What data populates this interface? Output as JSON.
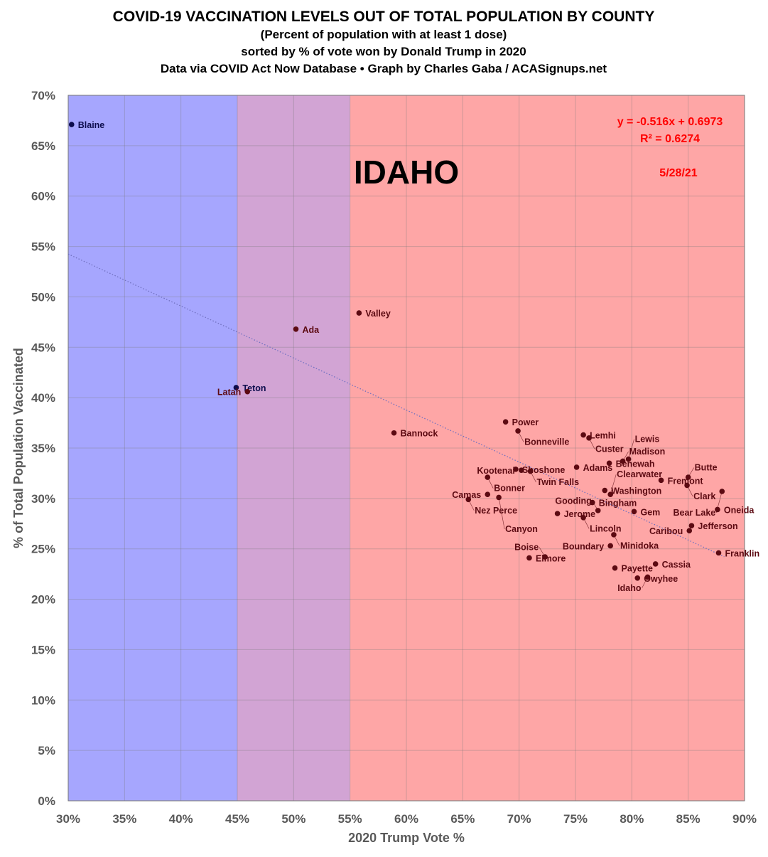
{
  "chart_data": {
    "type": "scatter",
    "title": "COVID-19 VACCINATION LEVELS OUT OF TOTAL POPULATION BY COUNTY",
    "subtitles": [
      "(Percent of population with at least 1 dose)",
      "sorted by % of vote won by Donald Trump in 2020",
      "Data via COVID Act Now Database • Graph by Charles Gaba / ACASignups.net"
    ],
    "xlabel": "2020 Trump Vote %",
    "ylabel": "% of Total Population Vaccinated",
    "xlim": [
      30,
      90
    ],
    "ylim": [
      0,
      70
    ],
    "xticks": [
      "30%",
      "35%",
      "40%",
      "45%",
      "50%",
      "55%",
      "60%",
      "65%",
      "70%",
      "75%",
      "80%",
      "85%",
      "90%"
    ],
    "yticks": [
      "0%",
      "5%",
      "10%",
      "15%",
      "20%",
      "25%",
      "30%",
      "35%",
      "40%",
      "45%",
      "50%",
      "55%",
      "60%",
      "65%",
      "70%"
    ],
    "grid": true,
    "state_label": "IDAHO",
    "date": "5/28/21",
    "trendline": {
      "equation": "y = -0.516x + 0.6973",
      "r2": "R² = 0.6274",
      "slope": -0.516,
      "intercept": 0.6973,
      "style": "dotted"
    },
    "regions": [
      {
        "from": 30,
        "to": 45,
        "color": "#a6a6fe"
      },
      {
        "from": 45,
        "to": 55,
        "color": "#d2a4d4"
      },
      {
        "from": 55,
        "to": 90,
        "color": "#fea6a6"
      }
    ],
    "colors": {
      "blue_point": "#0d0d4d",
      "red_point": "#5c0a12",
      "equation": "#ff0000",
      "trend": "#7070c0"
    },
    "points": [
      {
        "name": "Blaine",
        "x": 30.3,
        "y": 67.1
      },
      {
        "name": "Ada",
        "x": 50.2,
        "y": 46.8
      },
      {
        "name": "Valley",
        "x": 55.8,
        "y": 48.4
      },
      {
        "name": "Teton",
        "x": 44.9,
        "y": 41.0
      },
      {
        "name": "Latah",
        "x": 45.9,
        "y": 40.6
      },
      {
        "name": "Bannock",
        "x": 58.9,
        "y": 36.5
      },
      {
        "name": "Power",
        "x": 68.8,
        "y": 37.6
      },
      {
        "name": "Bonneville",
        "x": 69.9,
        "y": 36.7
      },
      {
        "name": "Lemhi",
        "x": 75.7,
        "y": 36.3
      },
      {
        "name": "Custer",
        "x": 76.2,
        "y": 36.0
      },
      {
        "name": "Shoshone",
        "x": 69.7,
        "y": 32.9
      },
      {
        "name": "Kootenai",
        "x": 70.2,
        "y": 32.8
      },
      {
        "name": "Twin Falls",
        "x": 71.0,
        "y": 32.7
      },
      {
        "name": "Adams",
        "x": 75.1,
        "y": 33.1
      },
      {
        "name": "Bonner",
        "x": 67.2,
        "y": 32.1
      },
      {
        "name": "Camas",
        "x": 67.2,
        "y": 30.4
      },
      {
        "name": "Nez Perce",
        "x": 65.5,
        "y": 29.9
      },
      {
        "name": "Canyon",
        "x": 68.2,
        "y": 30.1
      },
      {
        "name": "Jerome",
        "x": 73.4,
        "y": 28.5
      },
      {
        "name": "Lincoln",
        "x": 75.7,
        "y": 28.1
      },
      {
        "name": "Bingham",
        "x": 76.5,
        "y": 29.6
      },
      {
        "name": "Gooding",
        "x": 77.0,
        "y": 28.8
      },
      {
        "name": "Gem",
        "x": 80.2,
        "y": 28.7
      },
      {
        "name": "Washington",
        "x": 77.6,
        "y": 30.8
      },
      {
        "name": "Clearwater",
        "x": 78.1,
        "y": 30.4
      },
      {
        "name": "Benewah",
        "x": 78.0,
        "y": 33.5
      },
      {
        "name": "Madison",
        "x": 79.2,
        "y": 33.7
      },
      {
        "name": "Lewis",
        "x": 79.7,
        "y": 33.9
      },
      {
        "name": "Fremont",
        "x": 82.6,
        "y": 31.8
      },
      {
        "name": "Butte",
        "x": 85.0,
        "y": 32.1
      },
      {
        "name": "Clark",
        "x": 84.9,
        "y": 31.3
      },
      {
        "name": "Bear Lake",
        "x": 88.0,
        "y": 30.7
      },
      {
        "name": "Oneida",
        "x": 87.6,
        "y": 28.9
      },
      {
        "name": "Jefferson",
        "x": 85.3,
        "y": 27.3
      },
      {
        "name": "Caribou",
        "x": 85.1,
        "y": 26.8
      },
      {
        "name": "Franklin",
        "x": 87.7,
        "y": 24.6
      },
      {
        "name": "Minidoka",
        "x": 78.4,
        "y": 26.4
      },
      {
        "name": "Boundary",
        "x": 78.1,
        "y": 25.3
      },
      {
        "name": "Cassia",
        "x": 82.1,
        "y": 23.5
      },
      {
        "name": "Payette",
        "x": 78.5,
        "y": 23.1
      },
      {
        "name": "Owyhee",
        "x": 80.5,
        "y": 22.1
      },
      {
        "name": "Idaho",
        "x": 81.4,
        "y": 22.2
      },
      {
        "name": "Elmore",
        "x": 70.9,
        "y": 24.1
      },
      {
        "name": "Boise",
        "x": 72.3,
        "y": 24.2
      }
    ]
  }
}
